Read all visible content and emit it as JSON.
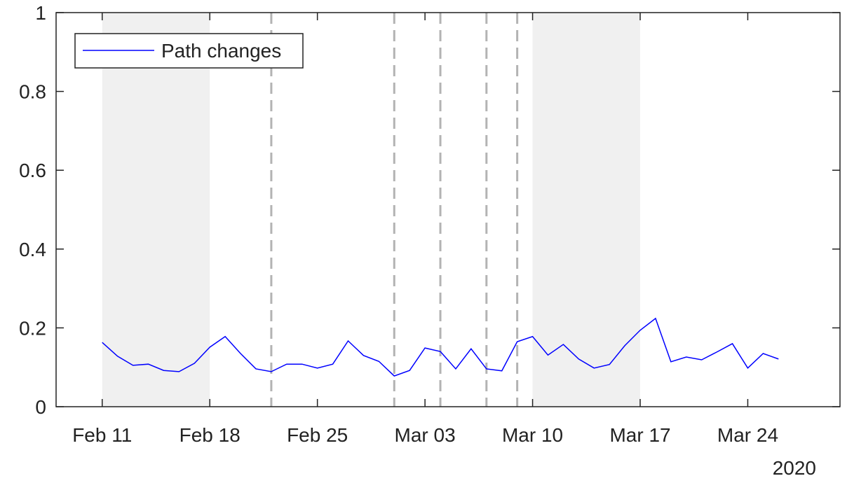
{
  "chart_data": {
    "type": "line",
    "x": [
      "2020-02-11",
      "2020-02-12",
      "2020-02-13",
      "2020-02-14",
      "2020-02-15",
      "2020-02-16",
      "2020-02-17",
      "2020-02-18",
      "2020-02-19",
      "2020-02-20",
      "2020-02-21",
      "2020-02-22",
      "2020-02-23",
      "2020-02-24",
      "2020-02-25",
      "2020-02-26",
      "2020-02-27",
      "2020-02-28",
      "2020-02-29",
      "2020-03-01",
      "2020-03-02",
      "2020-03-03",
      "2020-03-04",
      "2020-03-05",
      "2020-03-06",
      "2020-03-07",
      "2020-03-08",
      "2020-03-09",
      "2020-03-10",
      "2020-03-11",
      "2020-03-12",
      "2020-03-13",
      "2020-03-14",
      "2020-03-15",
      "2020-03-16",
      "2020-03-17",
      "2020-03-18",
      "2020-03-19",
      "2020-03-20",
      "2020-03-21",
      "2020-03-22",
      "2020-03-23",
      "2020-03-24",
      "2020-03-25",
      "2020-03-26"
    ],
    "series": [
      {
        "name": "Path changes",
        "color": "#0000ff",
        "values": [
          0.163,
          0.128,
          0.105,
          0.108,
          0.092,
          0.089,
          0.11,
          0.151,
          0.178,
          0.135,
          0.096,
          0.089,
          0.108,
          0.108,
          0.098,
          0.108,
          0.167,
          0.13,
          0.115,
          0.078,
          0.092,
          0.149,
          0.14,
          0.096,
          0.147,
          0.096,
          0.091,
          0.165,
          0.178,
          0.131,
          0.158,
          0.121,
          0.098,
          0.107,
          0.155,
          0.194,
          0.224,
          0.114,
          0.126,
          0.119,
          0.139,
          0.16,
          0.098,
          0.135,
          0.121
        ]
      }
    ],
    "xlim": [
      "2020-02-08",
      "2020-03-30"
    ],
    "xticks": [
      {
        "value": "2020-02-11",
        "label": "Feb 11"
      },
      {
        "value": "2020-02-18",
        "label": "Feb 18"
      },
      {
        "value": "2020-02-25",
        "label": "Feb 25"
      },
      {
        "value": "2020-03-03",
        "label": "Mar 03"
      },
      {
        "value": "2020-03-10",
        "label": "Mar 10"
      },
      {
        "value": "2020-03-17",
        "label": "Mar 17"
      },
      {
        "value": "2020-03-24",
        "label": "Mar 24"
      }
    ],
    "year_label": "2020",
    "ylim": [
      0,
      1
    ],
    "yticks": [
      0,
      0.2,
      0.4,
      0.6,
      0.8,
      1
    ],
    "shaded_ranges": [
      [
        "2020-02-11",
        "2020-02-18"
      ],
      [
        "2020-03-10",
        "2020-03-17"
      ]
    ],
    "shade_color": "#f0f0f0",
    "vlines": [
      "2020-02-22",
      "2020-03-01",
      "2020-03-04",
      "2020-03-07",
      "2020-03-09"
    ],
    "vline_color": "#b3b3b3",
    "legend": "upper left",
    "grid": false
  }
}
